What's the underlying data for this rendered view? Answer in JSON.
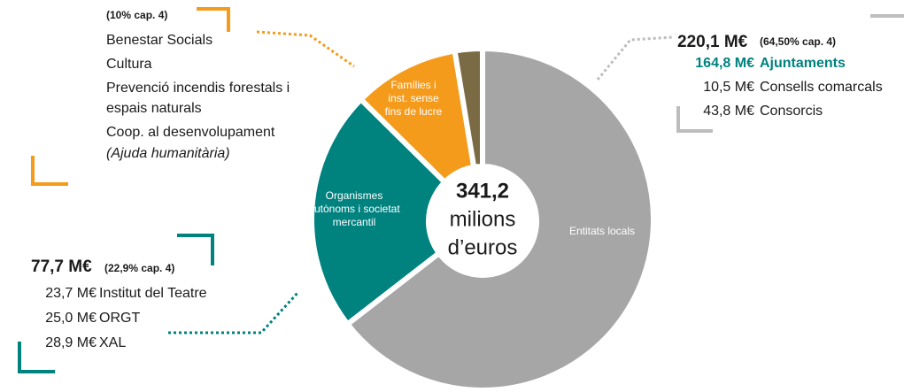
{
  "chart_data": {
    "type": "pie",
    "categories": [
      "Entitats locals",
      "Organismes autònoms i societat mercantil",
      "Famílies i inst. sense fins de lucre",
      null
    ],
    "values": [
      64.5,
      22.9,
      10,
      2.6
    ],
    "colors": [
      "#a6a6a6",
      "#00827f",
      "#f59b1c",
      "#7b6b45"
    ],
    "center_label": [
      "341,2",
      "milions",
      "d’euros"
    ],
    "annotations": {
      "entitats": {
        "total": "220,1 M€",
        "share": "(64,50% cap. 4)",
        "items": [
          {
            "amount": "164,8 M€",
            "name": "Ajuntaments"
          },
          {
            "amount": "10,5 M€",
            "name": "Consells comarcals"
          },
          {
            "amount": "43,8 M€",
            "name": "Consorcis"
          }
        ]
      },
      "organismes": {
        "total": "77,7 M€",
        "share": "(22,9% cap. 4)",
        "items": [
          {
            "amount": "23,7 M€",
            "name": "Institut del Teatre"
          },
          {
            "amount": "25,0 M€",
            "name": "ORGT"
          },
          {
            "amount": "28,9 M€",
            "name": "XAL"
          }
        ]
      },
      "families": {
        "share": "(10% cap. 4)",
        "items": [
          "Benestar Socials",
          "Cultura",
          "Prevenció incendis forestals i",
          "espais naturals",
          "Coop. al desenvolupament",
          "(Ajuda humanitària)"
        ]
      }
    }
  }
}
